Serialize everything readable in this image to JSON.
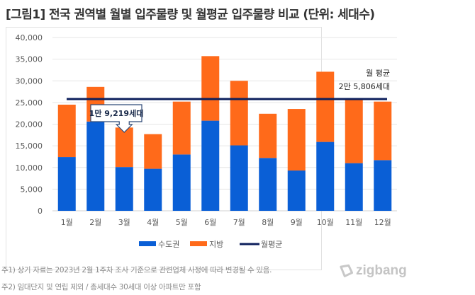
{
  "title": "[그림1] 전국 권역별 월별 입주물량 및 월평균 입주물량 비교 (단위: 세대수)",
  "chart_data": {
    "type": "bar",
    "stacked": true,
    "title": "[그림1] 전국 권역별 월별 입주물량 및 월평균 입주물량 비교 (단위: 세대수)",
    "xlabel": "",
    "ylabel": "",
    "ylim": [
      0,
      40000
    ],
    "yticks": [
      0,
      5000,
      10000,
      15000,
      20000,
      25000,
      30000,
      35000,
      40000
    ],
    "ytick_labels": [
      "0",
      "5,000",
      "10,000",
      "15,000",
      "20,000",
      "25,000",
      "30,000",
      "35,000",
      "40,000"
    ],
    "grid": true,
    "categories": [
      "1월",
      "2월",
      "3월",
      "4월",
      "5월",
      "6월",
      "7월",
      "8월",
      "9월",
      "10월",
      "11월",
      "12월"
    ],
    "series": [
      {
        "name": "수도권",
        "color": "#0a5fd6",
        "values": [
          12400,
          20600,
          10100,
          9700,
          13000,
          20800,
          15100,
          12200,
          9300,
          15900,
          11000,
          11700
        ]
      },
      {
        "name": "지방",
        "color": "#ff6a1a",
        "values": [
          12100,
          8000,
          9119,
          8000,
          12200,
          14900,
          14900,
          10200,
          14200,
          16200,
          14700,
          13500
        ]
      }
    ],
    "average_line": {
      "name": "월평균",
      "value": 25806,
      "color": "#0d1f5c"
    },
    "annotations": [
      {
        "text": "1만 9,219세대",
        "target": "3월",
        "value": 19219
      },
      {
        "line1": "월 평균",
        "line2": "2만 5,806세대"
      }
    ],
    "legend": {
      "position": "bottom",
      "entries": [
        "수도권",
        "지방",
        "월평균"
      ]
    }
  },
  "notes": [
    "주1) 상기 자료는 2023년 2월 1주차 조사 기준으로 관련업체 사정에 따라 변경될 수 있음.",
    "주2) 임대단지 및 연립 제외 / 총세대수 30세대 이상 아파트만 포함"
  ],
  "logo": {
    "text": "zigbang",
    "icon": "zigbang-logo-icon"
  }
}
